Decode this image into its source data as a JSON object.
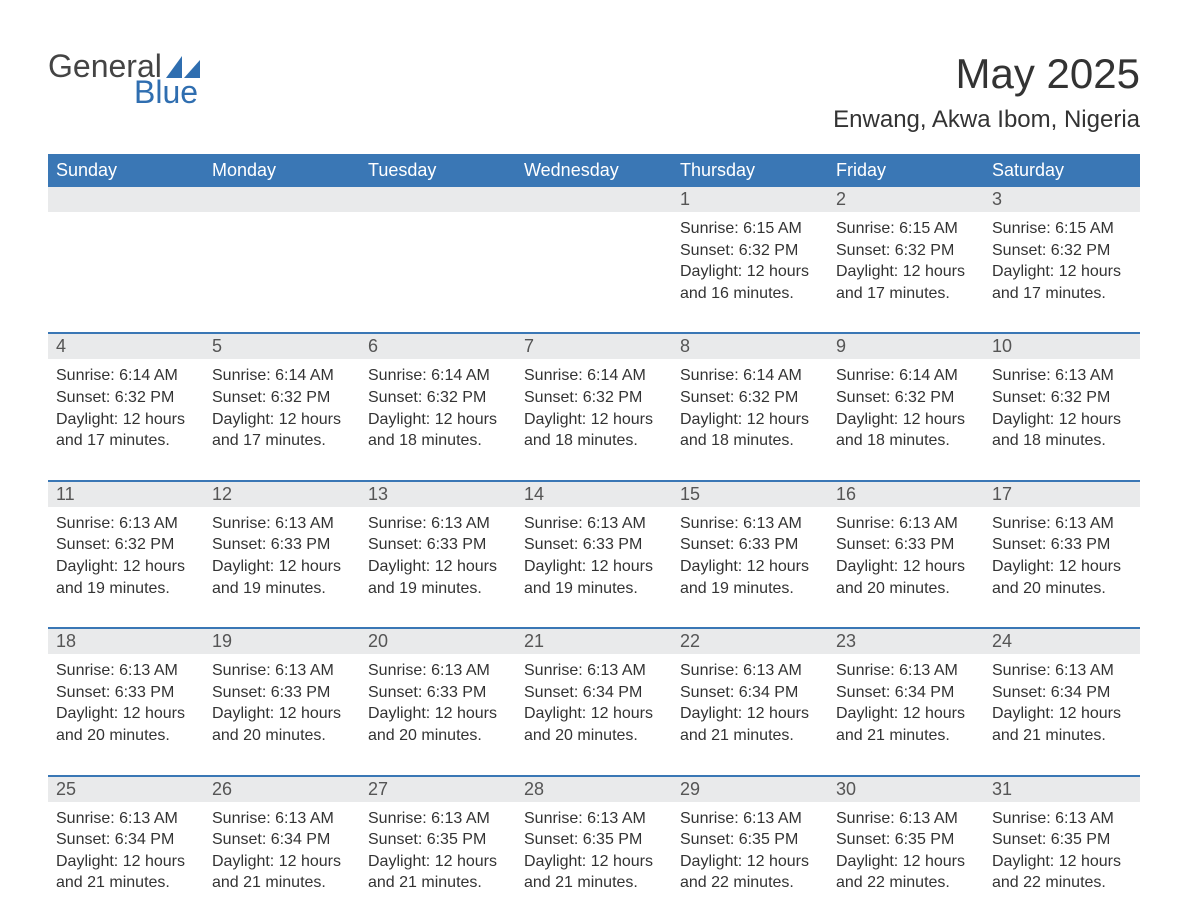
{
  "logo": {
    "text1": "General",
    "text2": "Blue",
    "shape_color": "#2f6eb0"
  },
  "title": "May 2025",
  "location": "Enwang, Akwa Ibom, Nigeria",
  "day_headers": [
    "Sunday",
    "Monday",
    "Tuesday",
    "Wednesday",
    "Thursday",
    "Friday",
    "Saturday"
  ],
  "colors": {
    "header_bg": "#3a77b5",
    "header_text": "#ffffff",
    "daynum_bg": "#e9eaeb",
    "daynum_border": "#3a77b5",
    "body_text": "#333333"
  },
  "weeks": [
    [
      null,
      null,
      null,
      null,
      {
        "n": "1",
        "sunrise": "6:15 AM",
        "sunset": "6:32 PM",
        "daylight": "12 hours and 16 minutes."
      },
      {
        "n": "2",
        "sunrise": "6:15 AM",
        "sunset": "6:32 PM",
        "daylight": "12 hours and 17 minutes."
      },
      {
        "n": "3",
        "sunrise": "6:15 AM",
        "sunset": "6:32 PM",
        "daylight": "12 hours and 17 minutes."
      }
    ],
    [
      {
        "n": "4",
        "sunrise": "6:14 AM",
        "sunset": "6:32 PM",
        "daylight": "12 hours and 17 minutes."
      },
      {
        "n": "5",
        "sunrise": "6:14 AM",
        "sunset": "6:32 PM",
        "daylight": "12 hours and 17 minutes."
      },
      {
        "n": "6",
        "sunrise": "6:14 AM",
        "sunset": "6:32 PM",
        "daylight": "12 hours and 18 minutes."
      },
      {
        "n": "7",
        "sunrise": "6:14 AM",
        "sunset": "6:32 PM",
        "daylight": "12 hours and 18 minutes."
      },
      {
        "n": "8",
        "sunrise": "6:14 AM",
        "sunset": "6:32 PM",
        "daylight": "12 hours and 18 minutes."
      },
      {
        "n": "9",
        "sunrise": "6:14 AM",
        "sunset": "6:32 PM",
        "daylight": "12 hours and 18 minutes."
      },
      {
        "n": "10",
        "sunrise": "6:13 AM",
        "sunset": "6:32 PM",
        "daylight": "12 hours and 18 minutes."
      }
    ],
    [
      {
        "n": "11",
        "sunrise": "6:13 AM",
        "sunset": "6:32 PM",
        "daylight": "12 hours and 19 minutes."
      },
      {
        "n": "12",
        "sunrise": "6:13 AM",
        "sunset": "6:33 PM",
        "daylight": "12 hours and 19 minutes."
      },
      {
        "n": "13",
        "sunrise": "6:13 AM",
        "sunset": "6:33 PM",
        "daylight": "12 hours and 19 minutes."
      },
      {
        "n": "14",
        "sunrise": "6:13 AM",
        "sunset": "6:33 PM",
        "daylight": "12 hours and 19 minutes."
      },
      {
        "n": "15",
        "sunrise": "6:13 AM",
        "sunset": "6:33 PM",
        "daylight": "12 hours and 19 minutes."
      },
      {
        "n": "16",
        "sunrise": "6:13 AM",
        "sunset": "6:33 PM",
        "daylight": "12 hours and 20 minutes."
      },
      {
        "n": "17",
        "sunrise": "6:13 AM",
        "sunset": "6:33 PM",
        "daylight": "12 hours and 20 minutes."
      }
    ],
    [
      {
        "n": "18",
        "sunrise": "6:13 AM",
        "sunset": "6:33 PM",
        "daylight": "12 hours and 20 minutes."
      },
      {
        "n": "19",
        "sunrise": "6:13 AM",
        "sunset": "6:33 PM",
        "daylight": "12 hours and 20 minutes."
      },
      {
        "n": "20",
        "sunrise": "6:13 AM",
        "sunset": "6:33 PM",
        "daylight": "12 hours and 20 minutes."
      },
      {
        "n": "21",
        "sunrise": "6:13 AM",
        "sunset": "6:34 PM",
        "daylight": "12 hours and 20 minutes."
      },
      {
        "n": "22",
        "sunrise": "6:13 AM",
        "sunset": "6:34 PM",
        "daylight": "12 hours and 21 minutes."
      },
      {
        "n": "23",
        "sunrise": "6:13 AM",
        "sunset": "6:34 PM",
        "daylight": "12 hours and 21 minutes."
      },
      {
        "n": "24",
        "sunrise": "6:13 AM",
        "sunset": "6:34 PM",
        "daylight": "12 hours and 21 minutes."
      }
    ],
    [
      {
        "n": "25",
        "sunrise": "6:13 AM",
        "sunset": "6:34 PM",
        "daylight": "12 hours and 21 minutes."
      },
      {
        "n": "26",
        "sunrise": "6:13 AM",
        "sunset": "6:34 PM",
        "daylight": "12 hours and 21 minutes."
      },
      {
        "n": "27",
        "sunrise": "6:13 AM",
        "sunset": "6:35 PM",
        "daylight": "12 hours and 21 minutes."
      },
      {
        "n": "28",
        "sunrise": "6:13 AM",
        "sunset": "6:35 PM",
        "daylight": "12 hours and 21 minutes."
      },
      {
        "n": "29",
        "sunrise": "6:13 AM",
        "sunset": "6:35 PM",
        "daylight": "12 hours and 22 minutes."
      },
      {
        "n": "30",
        "sunrise": "6:13 AM",
        "sunset": "6:35 PM",
        "daylight": "12 hours and 22 minutes."
      },
      {
        "n": "31",
        "sunrise": "6:13 AM",
        "sunset": "6:35 PM",
        "daylight": "12 hours and 22 minutes."
      }
    ]
  ],
  "labels": {
    "sunrise": "Sunrise:",
    "sunset": "Sunset:",
    "daylight": "Daylight:"
  }
}
